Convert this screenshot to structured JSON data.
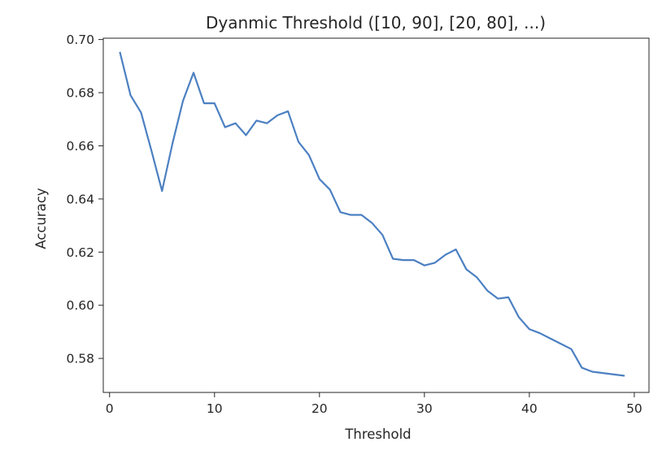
{
  "chart_data": {
    "type": "line",
    "title": "Dyanmic Threshold ([10, 90], [20, 80], ...)",
    "xlabel": "Threshold",
    "ylabel": "Accuracy",
    "xlim": [
      -0.6,
      51.4
    ],
    "ylim": [
      0.5672,
      0.7005
    ],
    "xticks": [
      0,
      10,
      20,
      30,
      40,
      50
    ],
    "xtick_labels": [
      "0",
      "10",
      "20",
      "30",
      "40",
      "50"
    ],
    "yticks": [
      0.58,
      0.6,
      0.62,
      0.64,
      0.66,
      0.68,
      0.7
    ],
    "ytick_labels": [
      "0.58",
      "0.60",
      "0.62",
      "0.64",
      "0.66",
      "0.68",
      "0.70"
    ],
    "grid": false,
    "series": [
      {
        "color": "#4c80c2",
        "x": [
          1,
          2,
          3,
          4,
          5,
          6,
          7,
          8,
          9,
          10,
          11,
          12,
          13,
          14,
          15,
          16,
          17,
          18,
          19,
          20,
          21,
          22,
          23,
          24,
          25,
          26,
          27,
          28,
          29,
          30,
          31,
          32,
          33,
          34,
          35,
          36,
          37,
          38,
          39,
          40,
          41,
          42,
          43,
          44,
          45,
          46,
          47,
          48,
          49
        ],
        "y": [
          0.695,
          0.679,
          0.6725,
          0.658,
          0.643,
          0.661,
          0.677,
          0.6875,
          0.676,
          0.676,
          0.667,
          0.6685,
          0.664,
          0.6695,
          0.6685,
          0.6715,
          0.673,
          0.6615,
          0.6565,
          0.6475,
          0.6435,
          0.635,
          0.634,
          0.634,
          0.631,
          0.6265,
          0.6175,
          0.617,
          0.617,
          0.615,
          0.616,
          0.619,
          0.621,
          0.6135,
          0.6105,
          0.6055,
          0.6025,
          0.603,
          0.5955,
          0.591,
          0.5895,
          0.5875,
          0.5855,
          0.5835,
          0.5765,
          0.575,
          0.5745,
          0.574,
          0.5735
        ]
      }
    ]
  }
}
